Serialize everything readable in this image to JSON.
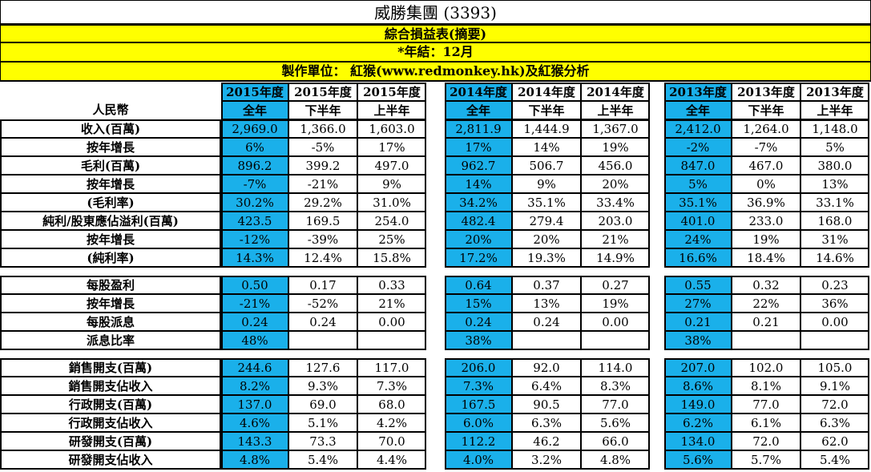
{
  "title": "威勝集團 (3393)",
  "subtitle1": "綜合損益表(摘要)",
  "subtitle2": "*年結：12月",
  "subtitle3": "製作單位： 紅猴(www.redmonkey.hk)及紅猴分析",
  "colors": {
    "accent_blue": "#1ab0ea",
    "header_yellow": "#ffff00"
  },
  "currency_label": "人民幣",
  "groups": [
    {
      "years": [
        "2015年度",
        "2015年度",
        "2015年度"
      ],
      "periods": [
        "全年",
        "下半年",
        "上半年"
      ]
    },
    {
      "years": [
        "2014年度",
        "2014年度",
        "2014年度"
      ],
      "periods": [
        "全年",
        "下半年",
        "上半年"
      ]
    },
    {
      "years": [
        "2013年度",
        "2013年度",
        "2013年度"
      ],
      "periods": [
        "全年",
        "下半年",
        "上半年"
      ]
    }
  ],
  "sections": [
    {
      "rows": [
        {
          "label": "收入(百萬)",
          "values": [
            "2,969.0",
            "1,366.0",
            "1,603.0",
            "2,811.9",
            "1,444.9",
            "1,367.0",
            "2,412.0",
            "1,264.0",
            "1,148.0"
          ]
        },
        {
          "label": "按年增長",
          "values": [
            "6%",
            "-5%",
            "17%",
            "17%",
            "14%",
            "19%",
            "-2%",
            "-7%",
            "5%"
          ]
        },
        {
          "label": "毛利(百萬)",
          "values": [
            "896.2",
            "399.2",
            "497.0",
            "962.7",
            "506.7",
            "456.0",
            "847.0",
            "467.0",
            "380.0"
          ]
        },
        {
          "label": "按年增長",
          "values": [
            "-7%",
            "-21%",
            "9%",
            "14%",
            "9%",
            "20%",
            "5%",
            "0%",
            "13%"
          ]
        },
        {
          "label": "(毛利率)",
          "values": [
            "30.2%",
            "29.2%",
            "31.0%",
            "34.2%",
            "35.1%",
            "33.4%",
            "35.1%",
            "36.9%",
            "33.1%"
          ]
        },
        {
          "label": "純利/股東應佔溢利(百萬)",
          "values": [
            "423.5",
            "169.5",
            "254.0",
            "482.4",
            "279.4",
            "203.0",
            "401.0",
            "233.0",
            "168.0"
          ]
        },
        {
          "label": "按年增長",
          "values": [
            "-12%",
            "-39%",
            "25%",
            "20%",
            "20%",
            "21%",
            "24%",
            "19%",
            "31%"
          ]
        },
        {
          "label": "(純利率)",
          "values": [
            "14.3%",
            "12.4%",
            "15.8%",
            "17.2%",
            "19.3%",
            "14.9%",
            "16.6%",
            "18.4%",
            "14.6%"
          ]
        }
      ]
    },
    {
      "rows": [
        {
          "label": "每股盈利",
          "values": [
            "0.50",
            "0.17",
            "0.33",
            "0.64",
            "0.37",
            "0.27",
            "0.55",
            "0.32",
            "0.23"
          ]
        },
        {
          "label": "按年增長",
          "values": [
            "-21%",
            "-52%",
            "21%",
            "15%",
            "13%",
            "19%",
            "27%",
            "22%",
            "36%"
          ]
        },
        {
          "label": "每股派息",
          "values": [
            "0.24",
            "0.24",
            "0.00",
            "0.24",
            "0.24",
            "0.00",
            "0.21",
            "0.21",
            "0.00"
          ]
        },
        {
          "label": "派息比率",
          "values": [
            "48%",
            "",
            "",
            "38%",
            "",
            "",
            "38%",
            "",
            ""
          ]
        }
      ]
    },
    {
      "rows": [
        {
          "label": "銷售開支(百萬)",
          "values": [
            "244.6",
            "127.6",
            "117.0",
            "206.0",
            "92.0",
            "114.0",
            "207.0",
            "102.0",
            "105.0"
          ]
        },
        {
          "label": "銷售開支佔收入",
          "values": [
            "8.2%",
            "9.3%",
            "7.3%",
            "7.3%",
            "6.4%",
            "8.3%",
            "8.6%",
            "8.1%",
            "9.1%"
          ]
        },
        {
          "label": "行政開支(百萬)",
          "values": [
            "137.0",
            "69.0",
            "68.0",
            "167.5",
            "90.5",
            "77.0",
            "149.0",
            "77.0",
            "72.0"
          ]
        },
        {
          "label": "行政開支佔收入",
          "values": [
            "4.6%",
            "5.1%",
            "4.2%",
            "6.0%",
            "6.3%",
            "5.6%",
            "6.2%",
            "6.1%",
            "6.3%"
          ]
        },
        {
          "label": "研發開支(百萬)",
          "values": [
            "143.3",
            "73.3",
            "70.0",
            "112.2",
            "46.2",
            "66.0",
            "134.0",
            "72.0",
            "62.0"
          ]
        },
        {
          "label": "研發開支佔收入",
          "values": [
            "4.8%",
            "5.4%",
            "4.4%",
            "4.0%",
            "3.2%",
            "4.8%",
            "5.6%",
            "5.7%",
            "5.4%"
          ]
        }
      ]
    }
  ]
}
